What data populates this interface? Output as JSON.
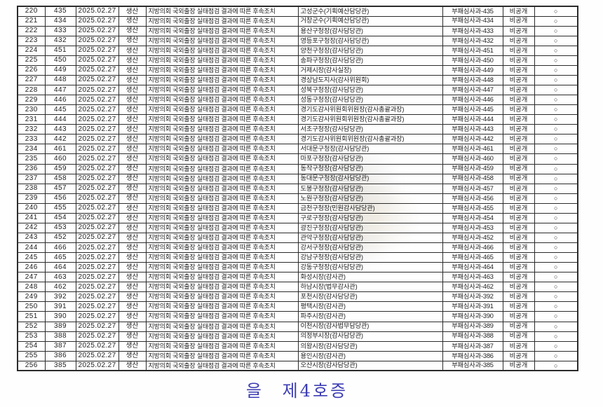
{
  "colors": {
    "exhibit_blue": "#3d3db4",
    "ink": "#1f1f1f",
    "border": "#2b2b2b"
  },
  "table": {
    "shared": {
      "date": "2025.02.27",
      "record_type": "생산",
      "title": "지방의회 국외출장 실태점검 결과에 따른 후속조치",
      "disclosure": "비공개",
      "mark": "○"
    },
    "rows": [
      {
        "seq": "220",
        "no": "435",
        "recipient": "고성군수(기획예산담당관)",
        "ref": "부패심사과-435"
      },
      {
        "seq": "221",
        "no": "434",
        "recipient": "거창군수(기획예산담당관)",
        "ref": "부패심사과-434"
      },
      {
        "seq": "222",
        "no": "433",
        "recipient": "용산구청장(감사담당관)",
        "ref": "부패심사과-433"
      },
      {
        "seq": "223",
        "no": "432",
        "recipient": "영등포구청장(감사담당관)",
        "ref": "부패심사과-432"
      },
      {
        "seq": "224",
        "no": "451",
        "recipient": "양천구청장(감사담당관)",
        "ref": "부패심사과-451"
      },
      {
        "seq": "225",
        "no": "450",
        "recipient": "송파구청장(감사담당관)",
        "ref": "부패심사과-450"
      },
      {
        "seq": "226",
        "no": "449",
        "recipient": "거제시장(감사실장)",
        "ref": "부패심사과-449"
      },
      {
        "seq": "227",
        "no": "448",
        "recipient": "경상남도지사(감사위원회)",
        "ref": "부패심사과-448"
      },
      {
        "seq": "228",
        "no": "447",
        "recipient": "성북구청장(감사담당관)",
        "ref": "부패심사과-447"
      },
      {
        "seq": "229",
        "no": "446",
        "recipient": "성동구청장(감사담당관)",
        "ref": "부패심사과-446"
      },
      {
        "seq": "230",
        "no": "445",
        "recipient": "경기도감사위원회위원장(감사총괄과장)",
        "ref": "부패심사과-445"
      },
      {
        "seq": "231",
        "no": "444",
        "recipient": "경기도감사위원회위원장(감사총괄과장)",
        "ref": "부패심사과-444"
      },
      {
        "seq": "232",
        "no": "443",
        "recipient": "서초구청장(감사담당관)",
        "ref": "부패심사과-443"
      },
      {
        "seq": "233",
        "no": "442",
        "recipient": "경기도감사위원회위원장(감사총괄과장)",
        "ref": "부패심사과-442"
      },
      {
        "seq": "234",
        "no": "461",
        "recipient": "서대문구청장(감사담당관)",
        "ref": "부패심사과-461"
      },
      {
        "seq": "235",
        "no": "460",
        "recipient": "마포구청장(감사담당관)",
        "ref": "부패심사과-460"
      },
      {
        "seq": "236",
        "no": "459",
        "recipient": "동작구청장(감사담당관)",
        "ref": "부패심사과-459"
      },
      {
        "seq": "237",
        "no": "458",
        "recipient": "동대문구청장(감사담당관)",
        "ref": "부패심사과-458"
      },
      {
        "seq": "238",
        "no": "457",
        "recipient": "도봉구청장(감사담당관)",
        "ref": "부패심사과-457"
      },
      {
        "seq": "239",
        "no": "456",
        "recipient": "노원구청장(감사담당관)",
        "ref": "부패심사과-456"
      },
      {
        "seq": "240",
        "no": "455",
        "recipient": "금천구청장(민원감사담당관)",
        "ref": "부패심사과-455"
      },
      {
        "seq": "241",
        "no": "454",
        "recipient": "구로구청장(감사담당관)",
        "ref": "부패심사과-454"
      },
      {
        "seq": "242",
        "no": "453",
        "recipient": "광진구청장(감사담당관)",
        "ref": "부패심사과-453"
      },
      {
        "seq": "243",
        "no": "452",
        "recipient": "관악구청장(감사담당관)",
        "ref": "부패심사과-452"
      },
      {
        "seq": "244",
        "no": "466",
        "recipient": "강서구청장(감사담당관)",
        "ref": "부패심사과-466"
      },
      {
        "seq": "245",
        "no": "465",
        "recipient": "강남구청장(감사담당관)",
        "ref": "부패심사과-465"
      },
      {
        "seq": "246",
        "no": "464",
        "recipient": "강동구청장(감사담당관)",
        "ref": "부패심사과-464"
      },
      {
        "seq": "247",
        "no": "463",
        "recipient": "화성시장(감사관)",
        "ref": "부패심사과-463"
      },
      {
        "seq": "248",
        "no": "462",
        "recipient": "하남시장(법무감사관)",
        "ref": "부패심사과-462"
      },
      {
        "seq": "249",
        "no": "392",
        "recipient": "포천시장(감사담당관)",
        "ref": "부패심사과-392"
      },
      {
        "seq": "250",
        "no": "391",
        "recipient": "평택시장(감사관)",
        "ref": "부패심사과-391"
      },
      {
        "seq": "251",
        "no": "390",
        "recipient": "파주시장(감사관)",
        "ref": "부패심사과-390"
      },
      {
        "seq": "252",
        "no": "389",
        "recipient": "이천시장(감사법무담당관)",
        "ref": "부패심사과-389"
      },
      {
        "seq": "253",
        "no": "388",
        "recipient": "의정부시장(감사담당관)",
        "ref": "부패심사과-388"
      },
      {
        "seq": "254",
        "no": "387",
        "recipient": "의왕시장(감사담당관)",
        "ref": "부패심사과-387"
      },
      {
        "seq": "255",
        "no": "386",
        "recipient": "용인시장(감사관)",
        "ref": "부패심사과-386"
      },
      {
        "seq": "256",
        "no": "385",
        "recipient": "오산시장(감사담당관)",
        "ref": "부패심사과-385"
      }
    ]
  },
  "footer": {
    "exhibit_label": "을 제4호증"
  }
}
